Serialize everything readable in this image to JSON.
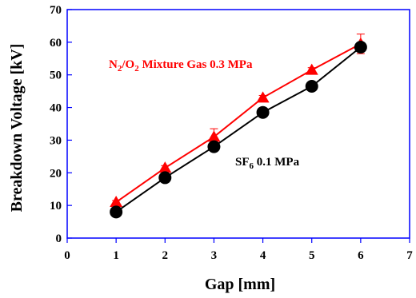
{
  "chart_data": {
    "type": "line",
    "xlabel": "Gap [mm]",
    "ylabel": "Breakdown Voltage [kV]",
    "xlim": [
      0,
      7
    ],
    "ylim": [
      0,
      70
    ],
    "xticks": [
      "0",
      "1",
      "2",
      "3",
      "4",
      "5",
      "6",
      "7"
    ],
    "yticks": [
      "0",
      "10",
      "20",
      "30",
      "40",
      "50",
      "60",
      "70"
    ],
    "grid": false,
    "series": [
      {
        "name": "N2/O2 Mixture Gas 0.3 MPa",
        "marker": "triangle",
        "color": "#ff0000",
        "x": [
          1,
          2,
          3,
          4,
          5,
          6
        ],
        "y": [
          11,
          21.5,
          31,
          43,
          51.5,
          59.5
        ],
        "error": [
          0.5,
          0.7,
          2.5,
          0.7,
          0.7,
          3.0
        ]
      },
      {
        "name": "SF6 0.1 MPa",
        "marker": "circle",
        "color": "#000000",
        "x": [
          1,
          2,
          3,
          4,
          5,
          6
        ],
        "y": [
          8,
          18.5,
          28,
          38.5,
          46.5,
          58.5
        ],
        "error": [
          0,
          0,
          0,
          0,
          0,
          0
        ]
      }
    ],
    "annotations": [
      {
        "parts": [
          [
            "N",
            "normal"
          ],
          [
            "2",
            "sub"
          ],
          [
            "/O",
            "normal"
          ],
          [
            "2",
            "sub"
          ],
          [
            " Mixture Gas 0.3 MPa",
            "normal"
          ]
        ],
        "color": "#ff0000"
      },
      {
        "parts": [
          [
            "SF",
            "normal"
          ],
          [
            "6",
            "sub"
          ],
          [
            " 0.1 MPa",
            "normal"
          ]
        ],
        "color": "#000000"
      }
    ]
  }
}
